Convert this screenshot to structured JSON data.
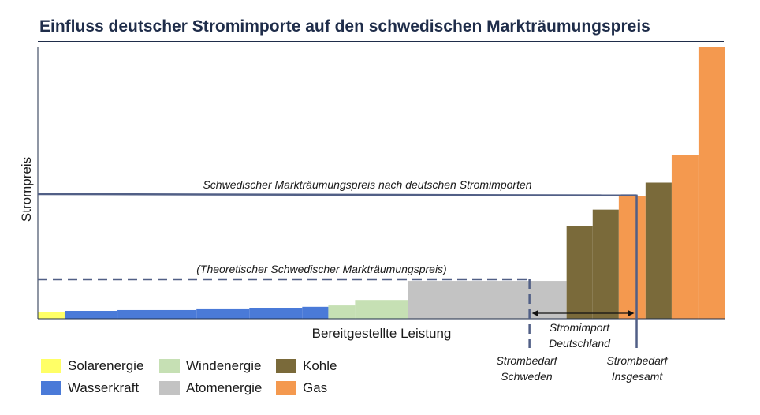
{
  "title": "Einfluss deutscher Stromimporte auf den schwedischen Markträumungspreis",
  "chart_data": {
    "type": "bar",
    "chart_kind": "merit-order step chart",
    "xlabel": "Bereitgestellte Leistung",
    "ylabel": "Strompreis",
    "x_range": [
      0,
      100
    ],
    "y_range": [
      0,
      100
    ],
    "grid": false,
    "bars": [
      {
        "source": "Solarenergie",
        "x0": 0,
        "x1": 3.9,
        "value": 2.6
      },
      {
        "source": "Wasserkraft",
        "x0": 3.9,
        "x1": 11.6,
        "value": 2.9
      },
      {
        "source": "Wasserkraft",
        "x0": 11.6,
        "x1": 23.1,
        "value": 3.2
      },
      {
        "source": "Wasserkraft",
        "x0": 23.1,
        "x1": 30.8,
        "value": 3.5
      },
      {
        "source": "Wasserkraft",
        "x0": 30.8,
        "x1": 38.5,
        "value": 3.8
      },
      {
        "source": "Wasserkraft",
        "x0": 38.5,
        "x1": 42.3,
        "value": 4.4
      },
      {
        "source": "Windenergie",
        "x0": 42.3,
        "x1": 46.2,
        "value": 4.9
      },
      {
        "source": "Windenergie",
        "x0": 46.2,
        "x1": 53.9,
        "value": 6.9
      },
      {
        "source": "Atomenergie",
        "x0": 53.9,
        "x1": 77.0,
        "value": 13.9
      },
      {
        "source": "Kohle",
        "x0": 77.0,
        "x1": 80.8,
        "value": 34.1
      },
      {
        "source": "Kohle",
        "x0": 80.8,
        "x1": 84.6,
        "value": 40.1
      },
      {
        "source": "Gas",
        "x0": 84.6,
        "x1": 88.5,
        "value": 45.2
      },
      {
        "source": "Kohle",
        "x0": 88.5,
        "x1": 92.3,
        "value": 50.0
      },
      {
        "source": "Gas",
        "x0": 92.3,
        "x1": 96.2,
        "value": 60.2
      },
      {
        "source": "Gas",
        "x0": 96.2,
        "x1": 100,
        "value": 100
      }
    ],
    "lines": [
      {
        "label": "Schwedischer Markträumungspreis nach deutschen Stromimporten",
        "style": "solid",
        "y": 45.6,
        "x_demand": 87.2
      },
      {
        "label": "(Theoretischer Schwedischer Markträumungspreis)",
        "style": "dashed",
        "y": 14.5,
        "x_demand": 71.6
      }
    ],
    "demand_labels": [
      {
        "text": [
          "Strombedarf",
          "Schweden"
        ],
        "x": 71.6
      },
      {
        "text": [
          "Strombedarf",
          "Insgesamt"
        ],
        "x": 87.2
      }
    ],
    "import_arrow": {
      "text": [
        "Stromimport",
        "Deutschland"
      ],
      "x_from": 71.6,
      "x_to": 87.2
    },
    "legend": [
      {
        "label": "Solarenergie",
        "color": "#ffff66"
      },
      {
        "label": "Windenergie",
        "color": "#c6e0b4"
      },
      {
        "label": "Kohle",
        "color": "#7a6a3a"
      },
      {
        "label": "Wasserkraft",
        "color": "#4a7ad8"
      },
      {
        "label": "Atomenergie",
        "color": "#c3c3c3"
      },
      {
        "label": "Gas",
        "color": "#f4994f"
      }
    ],
    "legend_placement": "bottom-left",
    "colors": {
      "Solarenergie": "#ffff66",
      "Wasserkraft": "#4a7ad8",
      "Windenergie": "#c6e0b4",
      "Atomenergie": "#c3c3c3",
      "Kohle": "#7a6a3a",
      "Gas": "#f4994f",
      "lines": "#515f86",
      "axis": "#1f2d4a"
    }
  }
}
